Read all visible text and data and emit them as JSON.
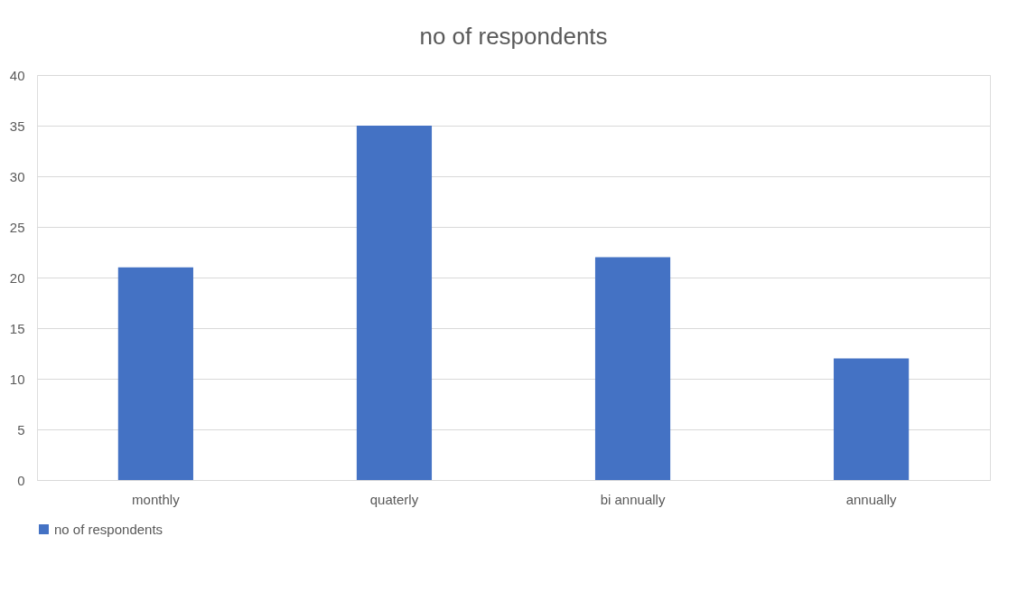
{
  "chart_data": {
    "type": "bar",
    "title": "no of respondents",
    "categories": [
      "monthly",
      "quaterly",
      "bi annually",
      "annually"
    ],
    "series": [
      {
        "name": "no of respondents",
        "color": "#4472c4",
        "values": [
          21,
          35,
          22,
          12
        ]
      }
    ],
    "ylim": [
      0,
      40
    ],
    "yticks": [
      0,
      5,
      10,
      15,
      20,
      25,
      30,
      35,
      40
    ],
    "grid": "y",
    "legend": "bottom"
  }
}
